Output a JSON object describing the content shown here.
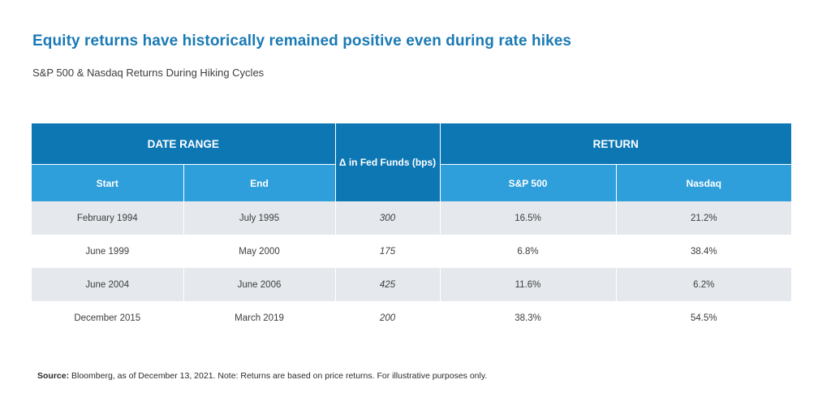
{
  "title": "Equity returns have historically remained positive even during rate hikes",
  "subtitle": "S&P 500 & Nasdaq Returns During Hiking Cycles",
  "table": {
    "group_headers": {
      "date_range": "DATE RANGE",
      "fed_funds": "Δ in Fed Funds (bps)",
      "return": "RETURN"
    },
    "columns": {
      "start": "Start",
      "end": "End",
      "sp500": "S&P 500",
      "nasdaq": "Nasdaq"
    },
    "rows": [
      {
        "start": "February 1994",
        "end": "July 1995",
        "fed": "300",
        "sp500": "16.5%",
        "nasdaq": "21.2%"
      },
      {
        "start": "June 1999",
        "end": "May 2000",
        "fed": "175",
        "sp500": "6.8%",
        "nasdaq": "38.4%"
      },
      {
        "start": "June 2004",
        "end": "June 2006",
        "fed": "425",
        "sp500": "11.6%",
        "nasdaq": "6.2%"
      },
      {
        "start": "December 2015",
        "end": "March 2019",
        "fed": "200",
        "sp500": "38.3%",
        "nasdaq": "54.5%"
      }
    ]
  },
  "source": {
    "label": "Source:",
    "text": " Bloomberg, as of December 13, 2021. Note: Returns are based on price returns. For illustrative purposes only."
  },
  "colors": {
    "title": "#1a7ab5",
    "header_dark": "#0d77b4",
    "header_light": "#2e9fdb",
    "row_shade": "#e5e9ed"
  }
}
